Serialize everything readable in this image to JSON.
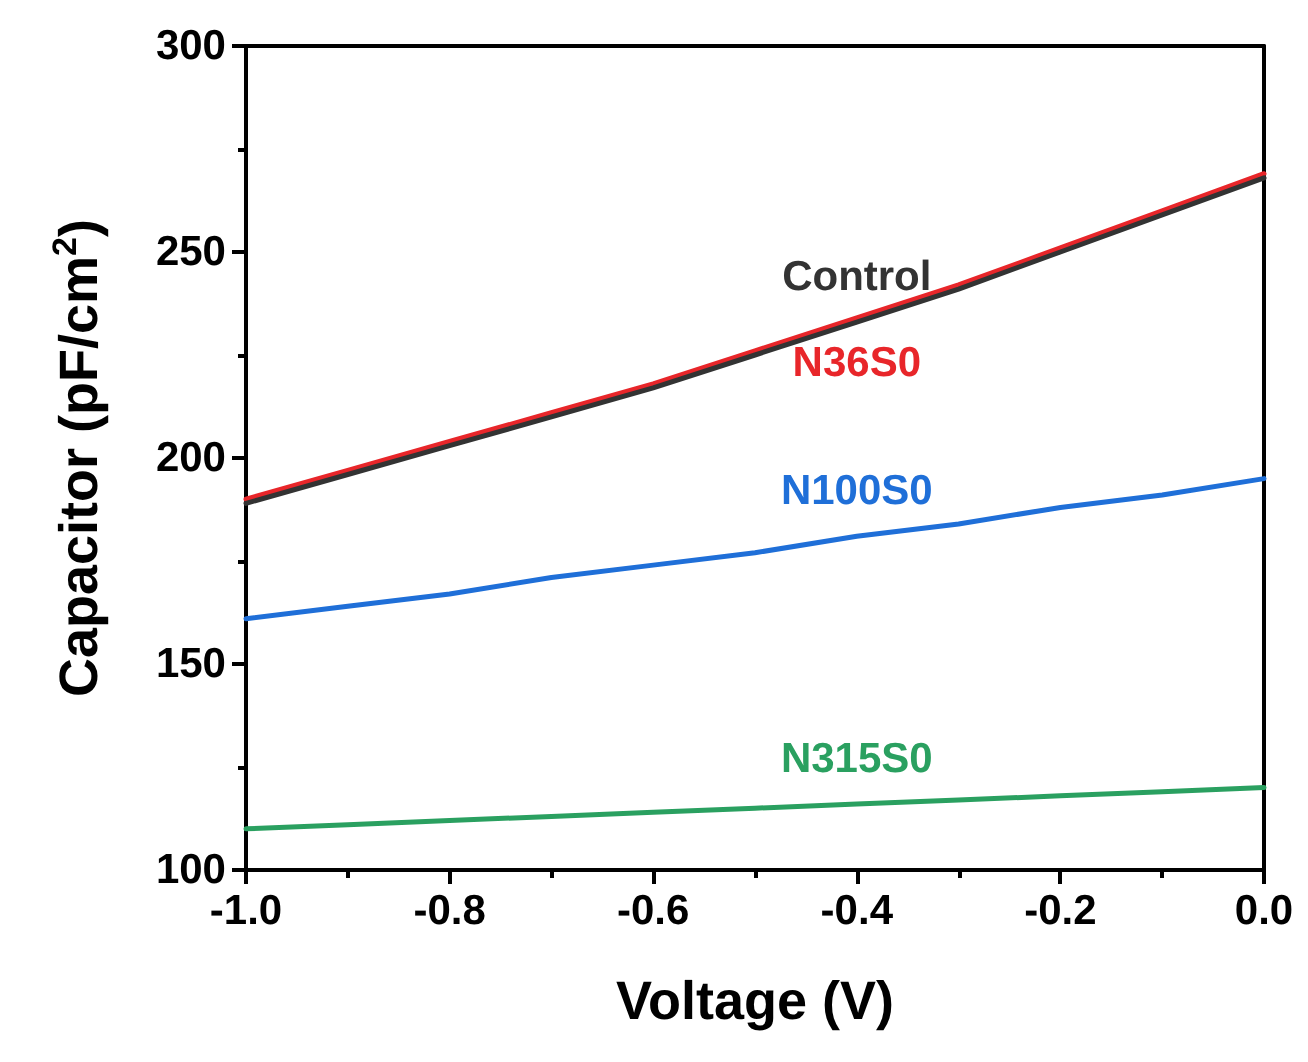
{
  "chart_data": {
    "type": "line",
    "xlabel": "Voltage (V)",
    "ylabel": "Capacitor (pF/cm$^{2}$)",
    "x": [
      -1.0,
      -0.9,
      -0.8,
      -0.7,
      -0.6,
      -0.5,
      -0.4,
      -0.3,
      -0.2,
      -0.1,
      0.0
    ],
    "series": [
      {
        "name": "Control",
        "color": "#333333",
        "values": [
          189,
          196,
          203,
          210,
          217,
          225,
          233,
          241,
          250,
          259,
          268
        ]
      },
      {
        "name": "N36S0",
        "color": "#e8262a",
        "values": [
          190,
          197,
          204,
          211,
          218,
          226,
          234,
          242,
          251,
          260,
          269
        ]
      },
      {
        "name": "N100S0",
        "color": "#1f6fd8",
        "values": [
          161,
          164,
          167,
          171,
          174,
          177,
          181,
          184,
          188,
          191,
          195
        ]
      },
      {
        "name": "N315S0",
        "color": "#2aa060",
        "values": [
          110,
          111,
          112,
          113,
          114,
          115,
          116,
          117,
          118,
          119,
          120
        ]
      }
    ],
    "xlim": [
      -1.0,
      0.0
    ],
    "xticks": [
      {
        "value": -1.0,
        "label": "-1.0"
      },
      {
        "value": -0.8,
        "label": "-0.8"
      },
      {
        "value": -0.6,
        "label": "-0.6"
      },
      {
        "value": -0.4,
        "label": "-0.4"
      },
      {
        "value": -0.2,
        "label": "-0.2"
      },
      {
        "value": 0.0,
        "label": "0.0"
      }
    ],
    "ylim": [
      100,
      300
    ],
    "yticks": [
      100,
      150,
      200,
      250,
      300
    ],
    "grid": false,
    "legend": false,
    "marker": "none",
    "line_style": "solid"
  }
}
